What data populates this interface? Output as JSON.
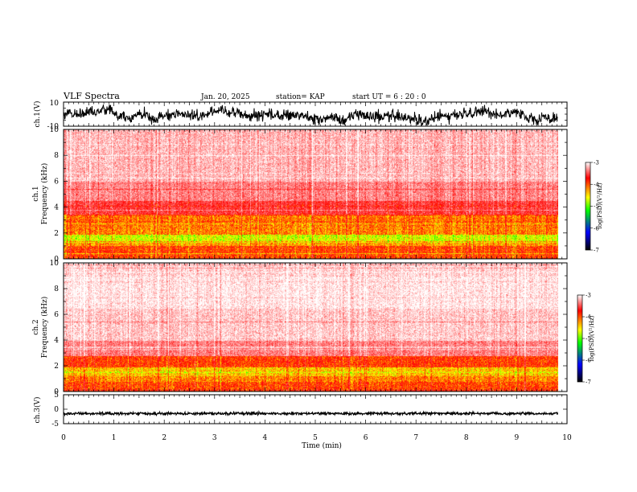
{
  "header": {
    "title": "VLF Spectra",
    "date": "Jan. 20, 2025",
    "station": "station= KAP",
    "start": "start  UT  =   6  : 20 : 0"
  },
  "colors": {
    "spectrogram_scale": [
      "#ffffff",
      "#ff0000",
      "#ffff00",
      "#00ff00",
      "#0000ff",
      "#000000"
    ],
    "trace": "#000000"
  },
  "chart_data": [
    {
      "name": "ch1-waveform",
      "type": "line",
      "ylabel": "ch.1(V)",
      "ylim": [
        -10,
        10
      ],
      "yticks": [
        -10,
        10
      ],
      "xlim": [
        0,
        10
      ],
      "data_end_min": 9.82,
      "shape": "noisy trace, roughly between -8 and 7"
    },
    {
      "name": "ch1-spectrogram",
      "type": "heatmap",
      "ylabel_prefix": "ch.1",
      "ylabel": "Frequency  (kHz)",
      "ylim": [
        0,
        10
      ],
      "yticks": [
        0,
        2,
        4,
        6,
        8,
        10
      ],
      "xlim": [
        0,
        10
      ],
      "data_end_min": 9.82,
      "colorbar": {
        "label": "log(PSD)(V²/Hz)",
        "range": [
          -7,
          -3
        ],
        "ticks": [
          -3,
          -4,
          -5,
          -6,
          -7
        ],
        "colors": [
          "#ffffff",
          "#ff0000",
          "#ffff00",
          "#00ff00",
          "#0000ff",
          "#000000"
        ]
      },
      "bands": [
        {
          "f": [
            0,
            1.0
          ],
          "level": -4.4
        },
        {
          "f": [
            1.0,
            1.4
          ],
          "level": -4.7
        },
        {
          "f": [
            1.4,
            1.9
          ],
          "level": -5.1
        },
        {
          "f": [
            1.9,
            2.6
          ],
          "level": -4.6
        },
        {
          "f": [
            2.6,
            3.4
          ],
          "level": -4.55
        },
        {
          "f": [
            3.4,
            4.5
          ],
          "level": -3.95
        },
        {
          "f": [
            4.5,
            6.0
          ],
          "level": -3.6
        },
        {
          "f": [
            6.0,
            10.0
          ],
          "level": -3.35
        }
      ]
    },
    {
      "name": "ch2-spectrogram",
      "type": "heatmap",
      "ylabel_prefix": "ch.2",
      "ylabel": "Frequency  (kHz)",
      "ylim": [
        0,
        10
      ],
      "yticks": [
        0,
        2,
        4,
        6,
        8,
        10
      ],
      "xlim": [
        0,
        10
      ],
      "data_end_min": 9.82,
      "colorbar": {
        "label": "log(PSD)(V²/Hz)",
        "range": [
          -7,
          -3
        ],
        "ticks": [
          -3,
          -4,
          -5,
          -6,
          -7
        ],
        "colors": [
          "#ffffff",
          "#ff0000",
          "#ffff00",
          "#00ff00",
          "#0000ff",
          "#000000"
        ]
      },
      "bands": [
        {
          "f": [
            0,
            0.8
          ],
          "level": -4.4
        },
        {
          "f": [
            0.8,
            1.2
          ],
          "level": -4.6
        },
        {
          "f": [
            1.2,
            1.9
          ],
          "level": -4.8
        },
        {
          "f": [
            1.9,
            2.8
          ],
          "level": -4.35
        },
        {
          "f": [
            2.8,
            4.0
          ],
          "level": -3.6
        },
        {
          "f": [
            4.0,
            6.5
          ],
          "level": -3.25
        },
        {
          "f": [
            6.5,
            9.0
          ],
          "level": -3.1
        },
        {
          "f": [
            9.0,
            10.0
          ],
          "level": -3.2
        }
      ]
    },
    {
      "name": "ch3-waveform",
      "type": "line",
      "ylabel": "ch.3(V)",
      "ylim": [
        -5,
        5
      ],
      "yticks": [
        -5,
        0,
        5
      ],
      "xlim": [
        0,
        10
      ],
      "data_end_min": 9.82,
      "shape": "dense thick trace around -1.5"
    }
  ],
  "xaxis": {
    "label": "Time  (min)",
    "ticks": [
      0,
      1,
      2,
      3,
      4,
      5,
      6,
      7,
      8,
      9,
      10
    ]
  }
}
